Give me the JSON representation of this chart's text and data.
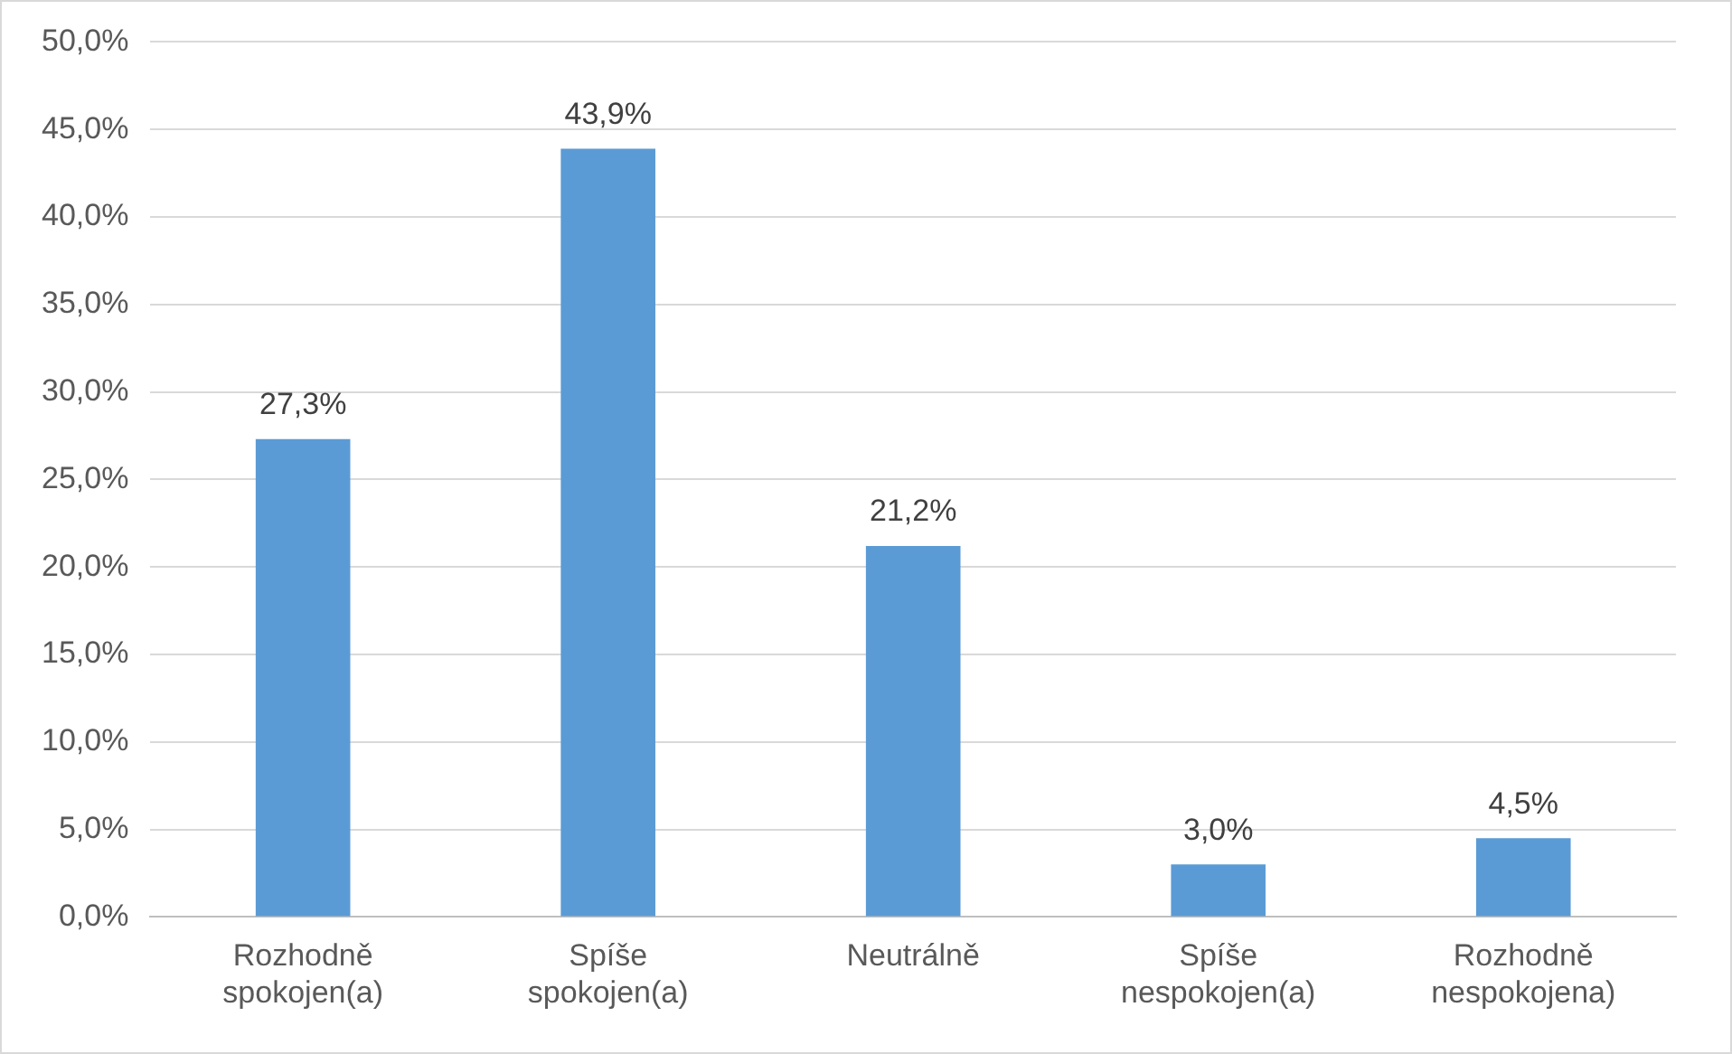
{
  "chart_data": {
    "type": "bar",
    "categories": [
      "Rozhodně spokojen(a)",
      "Spíše spokojen(a)",
      "Neutrálně",
      "Spíše nespokojen(a)",
      "Rozhodně nespokojena)"
    ],
    "values": [
      27.3,
      43.9,
      21.2,
      3.0,
      4.5
    ],
    "value_labels": [
      "27,3%",
      "43,9%",
      "21,2%",
      "3,0%",
      "4,5%"
    ],
    "color": "#5b9bd5",
    "ylim": [
      0,
      50
    ],
    "yticks": [
      {
        "value": 0,
        "label": "0,0%"
      },
      {
        "value": 5,
        "label": "5,0%"
      },
      {
        "value": 10,
        "label": "10,0%"
      },
      {
        "value": 15,
        "label": "15,0%"
      },
      {
        "value": 20,
        "label": "20,0%"
      },
      {
        "value": 25,
        "label": "25,0%"
      },
      {
        "value": 30,
        "label": "30,0%"
      },
      {
        "value": 35,
        "label": "35,0%"
      },
      {
        "value": 40,
        "label": "40,0%"
      },
      {
        "value": 45,
        "label": "45,0%"
      },
      {
        "value": 50,
        "label": "50,0%"
      }
    ],
    "grid": "y",
    "legend": false
  }
}
